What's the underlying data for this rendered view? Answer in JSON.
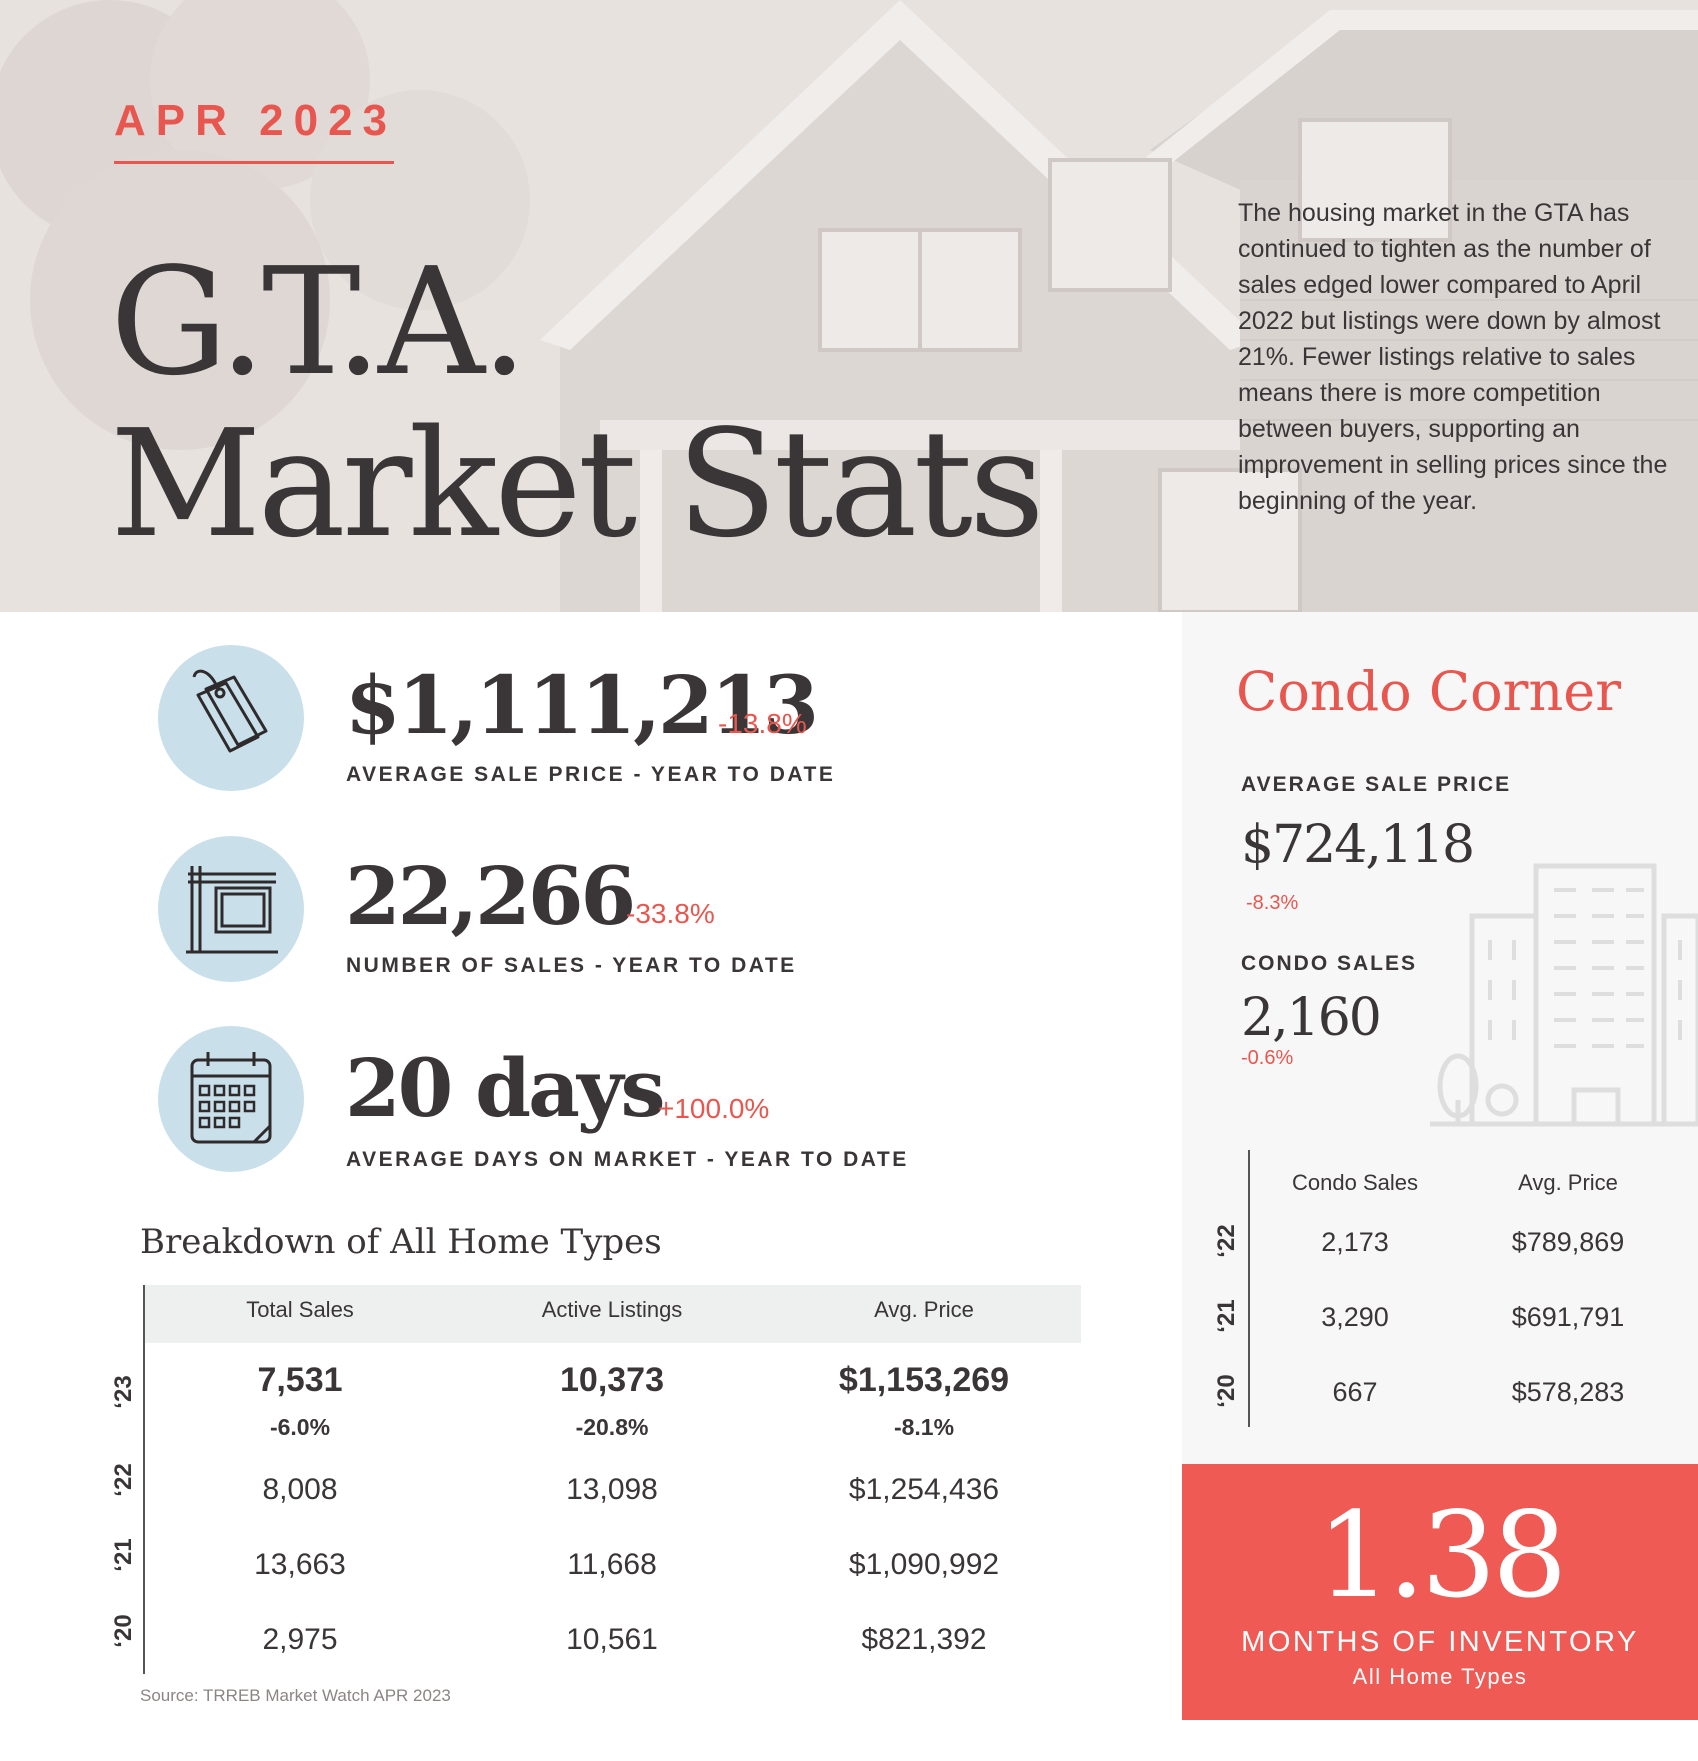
{
  "header": {
    "month": "APR 2023",
    "title_line1": "G.T.A.",
    "title_line2": "Market Stats",
    "intro": "The housing market in the GTA has continued to tighten as the number of sales edged lower compared to April 2022 but listings were down by almost 21%. Fewer listings relative to sales means there is more competition between buyers, supporting an improvement in selling prices since the beginning of the year."
  },
  "stats": [
    {
      "icon": "price-tag-icon",
      "value": "$1,111,213",
      "change": "-13.8%",
      "label": "AVERAGE SALE PRICE - YEAR TO DATE"
    },
    {
      "icon": "for-sale-sign-icon",
      "value": "22,266",
      "change": "-33.8%",
      "label": "NUMBER OF SALES - YEAR TO DATE"
    },
    {
      "icon": "calendar-icon",
      "value": "20 days",
      "change": "+100.0%",
      "label": "AVERAGE DAYS ON MARKET - YEAR TO DATE"
    }
  ],
  "breakdown": {
    "title": "Breakdown of All Home Types",
    "columns": [
      "Total Sales",
      "Active Listings",
      "Avg. Price"
    ],
    "rows": [
      {
        "year": "‘23",
        "values": [
          "7,531",
          "10,373",
          "$1,153,269"
        ],
        "changes": [
          "-6.0%",
          "-20.8%",
          "-8.1%"
        ]
      },
      {
        "year": "‘22",
        "values": [
          "8,008",
          "13,098",
          "$1,254,436"
        ]
      },
      {
        "year": "‘21",
        "values": [
          "13,663",
          "11,668",
          "$1,090,992"
        ]
      },
      {
        "year": "‘20",
        "values": [
          "2,975",
          "10,561",
          "$821,392"
        ]
      }
    ],
    "source": "Source: TRREB Market Watch APR 2023"
  },
  "condo": {
    "title": "Condo Corner",
    "avg_price_label": "AVERAGE SALE PRICE",
    "avg_price": "$724,118",
    "avg_price_change": "-8.3%",
    "sales_label": "CONDO SALES",
    "sales": "2,160",
    "sales_change": "-0.6%",
    "table_columns": [
      "Condo Sales",
      "Avg. Price"
    ],
    "table_rows": [
      {
        "year": "‘22",
        "sales": "2,173",
        "price": "$789,869"
      },
      {
        "year": "‘21",
        "sales": "3,290",
        "price": "$691,791"
      },
      {
        "year": "‘20",
        "sales": "667",
        "price": "$578,283"
      }
    ]
  },
  "inventory": {
    "value": "1.38",
    "label": "MONTHS OF INVENTORY",
    "sublabel": "All Home Types"
  },
  "colors": {
    "accent": "#e8574f",
    "inventory_bg": "#ef5a55",
    "icon_circle": "#c9e0ea",
    "text": "#3a3637"
  }
}
